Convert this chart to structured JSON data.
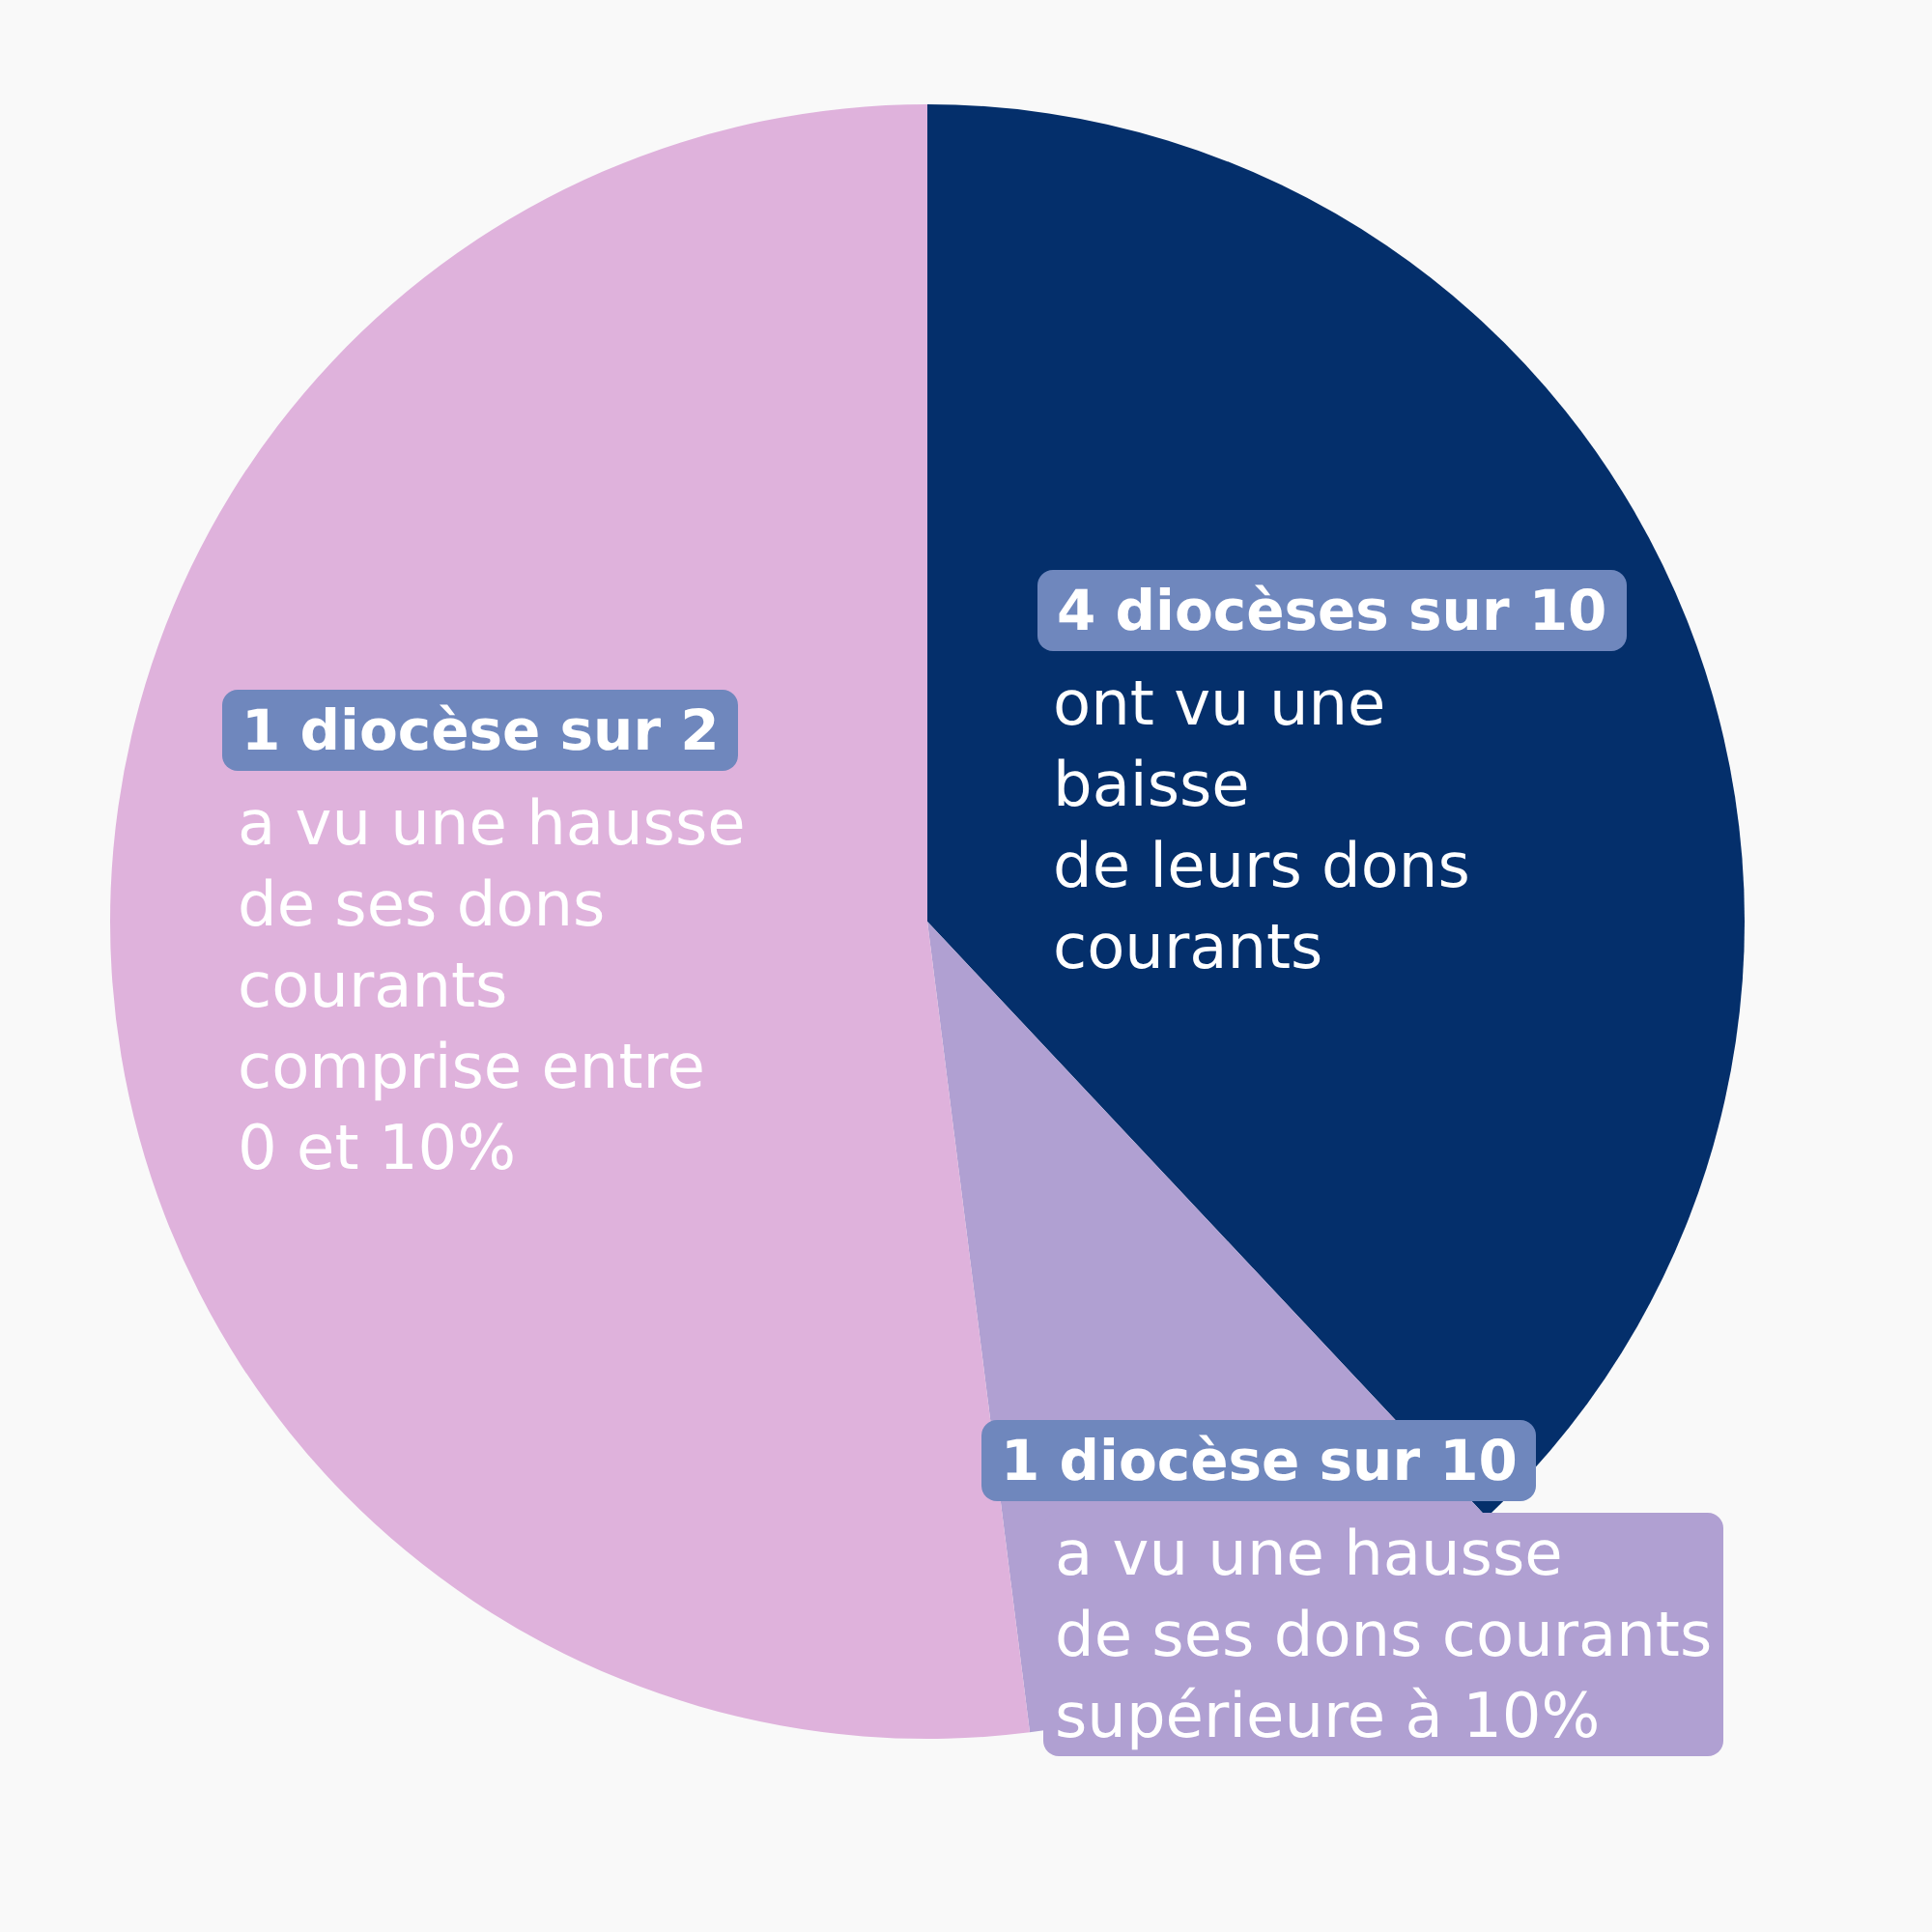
{
  "chart_data": {
    "type": "pie",
    "categories": [
      "4 diocèses sur 10",
      "1 diocèse sur 10",
      "1 diocèse sur 2"
    ],
    "values": [
      38,
      10,
      52
    ],
    "colors": [
      "#042f6b",
      "#b0a0d2",
      "#dfb2dc"
    ],
    "annotations": [
      "ont vu une\nbaisse\nde leurs dons\ncourants",
      "a vu une hausse\nde ses dons courants\nsupérieure à 10%",
      "a vu une hausse\nde ses dons\ncourants\ncomprise entre\n0 et 10%"
    ]
  }
}
